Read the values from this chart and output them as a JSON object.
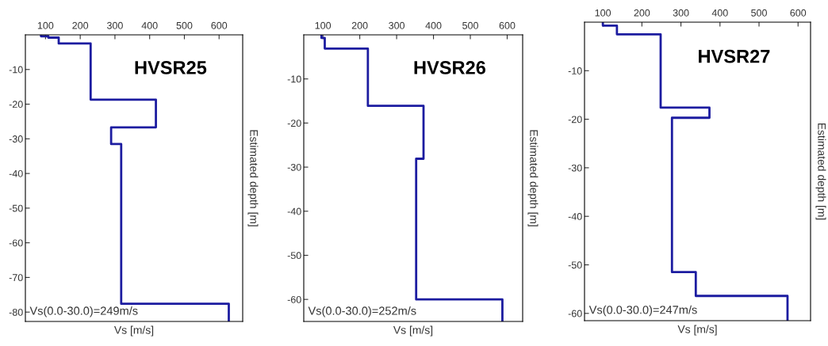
{
  "chart_data": [
    {
      "type": "line",
      "title": "HVSR25",
      "xlabel": "Vs [m/s]",
      "ylabel": "Estimated depth [m]",
      "annotations": [
        "Vs(0.0-30.0)=249m/s"
      ],
      "xlim": [
        42,
        668
      ],
      "xticks": [
        100,
        200,
        300,
        400,
        500,
        600
      ],
      "ylim": [
        -82.7,
        0
      ],
      "yticks": [
        -80,
        -70,
        -60,
        -50,
        -40,
        -30,
        -20,
        -10
      ],
      "grid": false,
      "legend": false,
      "marker": "none",
      "line_style": "solid",
      "series": [
        {
          "color": "#1c1ca0",
          "x": [
            87,
            87,
            108,
            108,
            138,
            138,
            230,
            230,
            418,
            418,
            289,
            289,
            318,
            318,
            628,
            628
          ],
          "values": [
            0,
            -0.4,
            -0.4,
            -0.8,
            -0.8,
            -2.5,
            -2.5,
            -18.7,
            -18.7,
            -26.7,
            -26.7,
            -31.5,
            -31.5,
            -77.6,
            -77.6,
            -82.7
          ]
        }
      ]
    },
    {
      "type": "line",
      "title": "HVSR26",
      "xlabel": "Vs [m/s]",
      "ylabel": "Estimated depth [m]",
      "annotations": [
        "Vs(0.0-30.0)=252m/s"
      ],
      "xlim": [
        48,
        642
      ],
      "xticks": [
        100,
        200,
        300,
        400,
        500,
        600
      ],
      "ylim": [
        -65,
        0
      ],
      "yticks": [
        -60,
        -50,
        -40,
        -30,
        -20,
        -10
      ],
      "grid": false,
      "legend": false,
      "marker": "none",
      "line_style": "solid",
      "series": [
        {
          "color": "#1c1ca0",
          "x": [
            96,
            96,
            105,
            105,
            222,
            222,
            373,
            373,
            353,
            353,
            587,
            587
          ],
          "values": [
            0,
            -0.7,
            -0.7,
            -3.1,
            -3.1,
            -16.1,
            -16.1,
            -28.1,
            -28.1,
            -60,
            -60,
            -65
          ]
        }
      ]
    },
    {
      "type": "line",
      "title": "HVSR27",
      "xlabel": "Vs [m/s]",
      "ylabel": "Estimated depth [m]",
      "annotations": [
        "Vs(0.0-30.0)=247m/s"
      ],
      "xlim": [
        53,
        632
      ],
      "xticks": [
        100,
        200,
        300,
        400,
        500,
        600
      ],
      "ylim": [
        -61.5,
        0
      ],
      "yticks": [
        -60,
        -50,
        -40,
        -30,
        -20,
        -10
      ],
      "grid": false,
      "legend": false,
      "marker": "none",
      "line_style": "solid",
      "series": [
        {
          "color": "#1c1ca0",
          "x": [
            100,
            100,
            136,
            136,
            248,
            248,
            373,
            373,
            277,
            277,
            338,
            338,
            573,
            573
          ],
          "values": [
            0,
            -0.7,
            -0.7,
            -2.5,
            -2.5,
            -17.6,
            -17.6,
            -19.7,
            -19.7,
            -51.5,
            -51.5,
            -56.4,
            -56.4,
            -61.5
          ]
        }
      ]
    }
  ]
}
